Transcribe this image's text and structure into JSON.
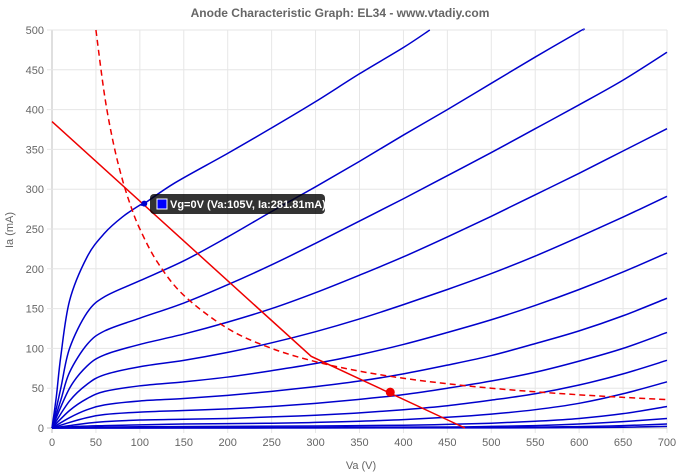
{
  "chart_data": {
    "type": "line",
    "title": "Anode Characteristic Graph: EL34 - www.vtadiy.com",
    "xlabel": "Va (V)",
    "ylabel": "Ia (mA)",
    "xlim": [
      0,
      700
    ],
    "ylim": [
      0,
      500
    ],
    "xticks": [
      0,
      50,
      100,
      150,
      200,
      250,
      300,
      350,
      400,
      450,
      500,
      550,
      600,
      650,
      700
    ],
    "yticks": [
      0,
      50,
      100,
      150,
      200,
      250,
      300,
      350,
      400,
      450,
      500
    ],
    "grid": true,
    "curve_color": "#0000cc",
    "anode_curves": [
      {
        "name": "Vg=0V",
        "points": [
          [
            0,
            0
          ],
          [
            5,
            40
          ],
          [
            10,
            90
          ],
          [
            20,
            160
          ],
          [
            40,
            215
          ],
          [
            60,
            245
          ],
          [
            80,
            265
          ],
          [
            100,
            280
          ],
          [
            105,
            282
          ],
          [
            140,
            308
          ],
          [
            200,
            345
          ],
          [
            250,
            377
          ],
          [
            300,
            410
          ],
          [
            350,
            445
          ],
          [
            400,
            478
          ],
          [
            430,
            500
          ]
        ]
      },
      {
        "points": [
          [
            0,
            0
          ],
          [
            10,
            50
          ],
          [
            20,
            100
          ],
          [
            40,
            145
          ],
          [
            60,
            165
          ],
          [
            100,
            185
          ],
          [
            150,
            210
          ],
          [
            200,
            240
          ],
          [
            250,
            272
          ],
          [
            300,
            303
          ],
          [
            350,
            335
          ],
          [
            400,
            368
          ],
          [
            450,
            400
          ],
          [
            500,
            433
          ],
          [
            550,
            466
          ],
          [
            600,
            498
          ],
          [
            605,
            500
          ]
        ]
      },
      {
        "points": [
          [
            0,
            0
          ],
          [
            10,
            35
          ],
          [
            20,
            70
          ],
          [
            40,
            105
          ],
          [
            60,
            122
          ],
          [
            100,
            138
          ],
          [
            150,
            157
          ],
          [
            200,
            180
          ],
          [
            250,
            205
          ],
          [
            300,
            232
          ],
          [
            350,
            260
          ],
          [
            400,
            288
          ],
          [
            450,
            317
          ],
          [
            500,
            346
          ],
          [
            550,
            376
          ],
          [
            600,
            406
          ],
          [
            650,
            437
          ],
          [
            700,
            472
          ]
        ]
      },
      {
        "points": [
          [
            0,
            0
          ],
          [
            20,
            50
          ],
          [
            40,
            78
          ],
          [
            60,
            92
          ],
          [
            100,
            105
          ],
          [
            150,
            118
          ],
          [
            200,
            133
          ],
          [
            250,
            150
          ],
          [
            300,
            170
          ],
          [
            350,
            192
          ],
          [
            400,
            215
          ],
          [
            450,
            240
          ],
          [
            500,
            266
          ],
          [
            550,
            293
          ],
          [
            600,
            320
          ],
          [
            650,
            348
          ],
          [
            700,
            376
          ]
        ]
      },
      {
        "points": [
          [
            0,
            0
          ],
          [
            20,
            34
          ],
          [
            40,
            55
          ],
          [
            60,
            67
          ],
          [
            100,
            77
          ],
          [
            150,
            85
          ],
          [
            200,
            95
          ],
          [
            250,
            107
          ],
          [
            300,
            121
          ],
          [
            350,
            137
          ],
          [
            400,
            155
          ],
          [
            450,
            174
          ],
          [
            500,
            194
          ],
          [
            550,
            216
          ],
          [
            600,
            240
          ],
          [
            650,
            265
          ],
          [
            700,
            291
          ]
        ]
      },
      {
        "points": [
          [
            0,
            0
          ],
          [
            20,
            22
          ],
          [
            40,
            37
          ],
          [
            60,
            46
          ],
          [
            100,
            53
          ],
          [
            150,
            58
          ],
          [
            200,
            64
          ],
          [
            250,
            72
          ],
          [
            300,
            81
          ],
          [
            350,
            92
          ],
          [
            400,
            105
          ],
          [
            450,
            120
          ],
          [
            500,
            136
          ],
          [
            550,
            154
          ],
          [
            600,
            174
          ],
          [
            650,
            196
          ],
          [
            700,
            220
          ]
        ]
      },
      {
        "points": [
          [
            0,
            0
          ],
          [
            20,
            13
          ],
          [
            40,
            23
          ],
          [
            60,
            29
          ],
          [
            100,
            34
          ],
          [
            150,
            37
          ],
          [
            200,
            41
          ],
          [
            250,
            46
          ],
          [
            300,
            52
          ],
          [
            350,
            59
          ],
          [
            400,
            68
          ],
          [
            450,
            79
          ],
          [
            500,
            91
          ],
          [
            550,
            106
          ],
          [
            600,
            122
          ],
          [
            650,
            141
          ],
          [
            700,
            163
          ]
        ]
      },
      {
        "points": [
          [
            0,
            0
          ],
          [
            20,
            7
          ],
          [
            40,
            13
          ],
          [
            60,
            17
          ],
          [
            100,
            20
          ],
          [
            150,
            22
          ],
          [
            200,
            24
          ],
          [
            250,
            27
          ],
          [
            300,
            31
          ],
          [
            350,
            36
          ],
          [
            400,
            42
          ],
          [
            450,
            50
          ],
          [
            500,
            59
          ],
          [
            550,
            70
          ],
          [
            600,
            84
          ],
          [
            650,
            100
          ],
          [
            700,
            120
          ]
        ]
      },
      {
        "points": [
          [
            0,
            0
          ],
          [
            20,
            3
          ],
          [
            40,
            6
          ],
          [
            60,
            8
          ],
          [
            100,
            10
          ],
          [
            150,
            11
          ],
          [
            200,
            12
          ],
          [
            250,
            14
          ],
          [
            300,
            16
          ],
          [
            350,
            19
          ],
          [
            400,
            23
          ],
          [
            450,
            28
          ],
          [
            500,
            35
          ],
          [
            550,
            43
          ],
          [
            600,
            54
          ],
          [
            650,
            68
          ],
          [
            700,
            85
          ]
        ]
      },
      {
        "points": [
          [
            0,
            0
          ],
          [
            30,
            2
          ],
          [
            60,
            3
          ],
          [
            100,
            4
          ],
          [
            150,
            5
          ],
          [
            200,
            5.5
          ],
          [
            250,
            6
          ],
          [
            300,
            7
          ],
          [
            350,
            8.5
          ],
          [
            400,
            10.5
          ],
          [
            450,
            13.5
          ],
          [
            500,
            17.5
          ],
          [
            550,
            23
          ],
          [
            600,
            31
          ],
          [
            650,
            43
          ],
          [
            700,
            58
          ]
        ]
      },
      {
        "points": [
          [
            0,
            0
          ],
          [
            50,
            1
          ],
          [
            100,
            1.5
          ],
          [
            200,
            2
          ],
          [
            300,
            2.5
          ],
          [
            400,
            3.5
          ],
          [
            450,
            4.5
          ],
          [
            500,
            6
          ],
          [
            550,
            8.5
          ],
          [
            600,
            12
          ],
          [
            650,
            18
          ],
          [
            700,
            27
          ]
        ]
      },
      {
        "points": [
          [
            0,
            0
          ],
          [
            100,
            0.5
          ],
          [
            300,
            0.8
          ],
          [
            450,
            1.3
          ],
          [
            500,
            2
          ],
          [
            550,
            3
          ],
          [
            600,
            5
          ],
          [
            650,
            8
          ],
          [
            700,
            12
          ]
        ]
      },
      {
        "points": [
          [
            0,
            0
          ],
          [
            300,
            0.2
          ],
          [
            450,
            0.4
          ],
          [
            500,
            0.7
          ],
          [
            550,
            1.1
          ],
          [
            600,
            1.8
          ],
          [
            650,
            3
          ],
          [
            700,
            5
          ]
        ]
      },
      {
        "points": [
          [
            0,
            0
          ],
          [
            500,
            0.2
          ],
          [
            600,
            0.5
          ],
          [
            650,
            1
          ],
          [
            700,
            2
          ]
        ]
      }
    ],
    "max_dissipation_curve": {
      "color": "#ee0000",
      "style": "dashed",
      "points": [
        [
          50,
          500
        ],
        [
          60,
          416.7
        ],
        [
          70,
          357.1
        ],
        [
          80,
          312.5
        ],
        [
          90,
          277.8
        ],
        [
          100,
          250
        ],
        [
          120,
          208.3
        ],
        [
          150,
          166.7
        ],
        [
          200,
          125
        ],
        [
          250,
          100
        ],
        [
          300,
          83.3
        ],
        [
          350,
          71.4
        ],
        [
          400,
          62.5
        ],
        [
          450,
          55.6
        ],
        [
          500,
          50
        ],
        [
          550,
          45.5
        ],
        [
          600,
          41.7
        ],
        [
          650,
          38.5
        ],
        [
          700,
          35.7
        ]
      ]
    },
    "load_line": {
      "color": "#ee0000",
      "points": [
        [
          0,
          385
        ],
        [
          295,
          90
        ],
        [
          470,
          0
        ]
      ]
    },
    "operating_point": {
      "x": 385,
      "y": 45,
      "color": "#ee0000"
    },
    "tooltip": {
      "text": "Vg=0V (Va:105V, Ia:281.81mA)",
      "x": 105,
      "y": 281.81,
      "swatch_color": "#0000ff"
    }
  }
}
